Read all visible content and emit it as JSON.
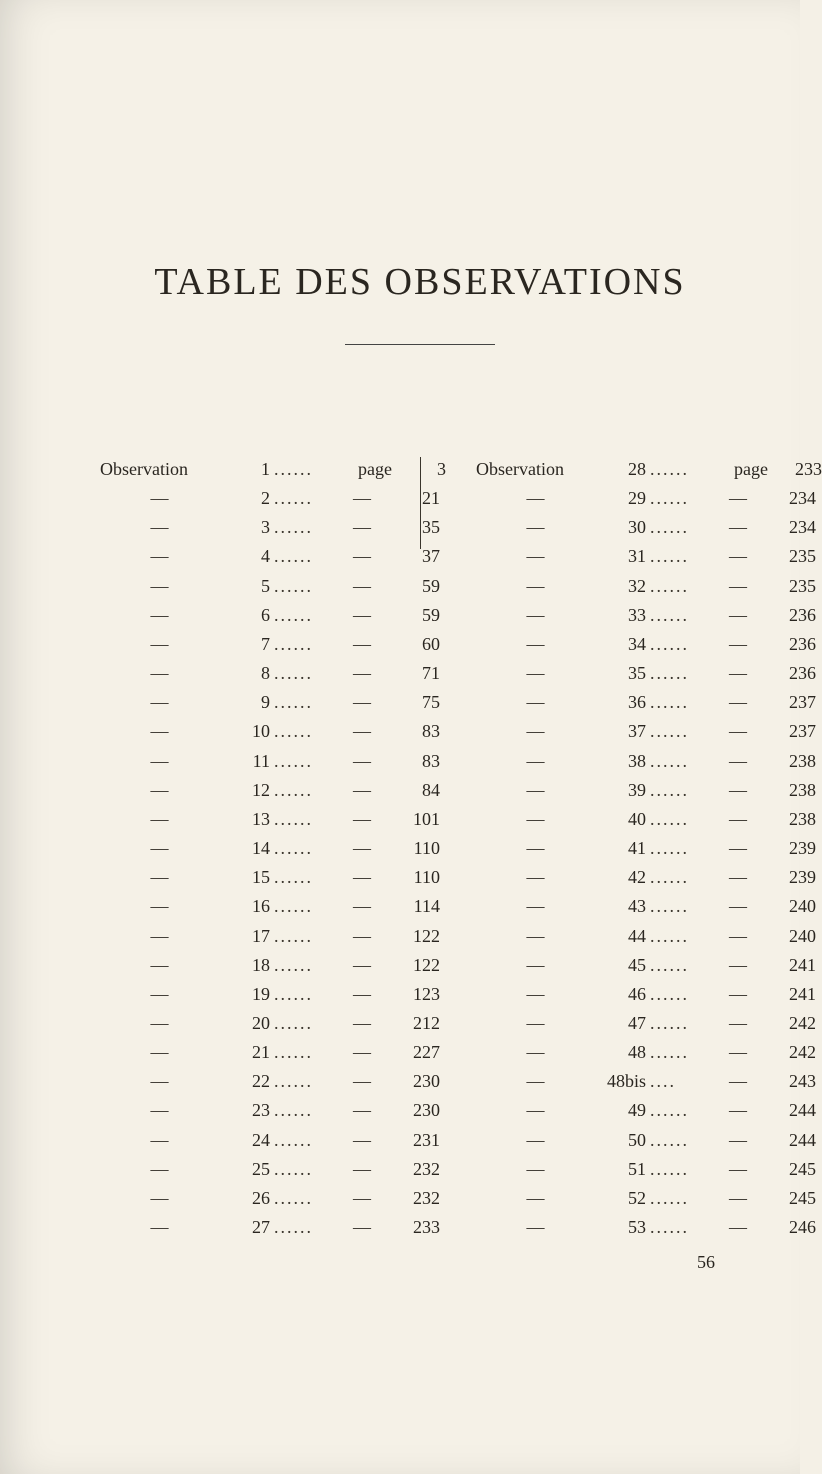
{
  "title": "TABLE DES OBSERVATIONS",
  "lead_word": "Observation",
  "page_word": "page",
  "dash": "—",
  "dots": "......",
  "footer": "56",
  "left": [
    {
      "n": "1",
      "p": "3"
    },
    {
      "n": "2",
      "p": "21"
    },
    {
      "n": "3",
      "p": "35"
    },
    {
      "n": "4",
      "p": "37"
    },
    {
      "n": "5",
      "p": "59"
    },
    {
      "n": "6",
      "p": "59"
    },
    {
      "n": "7",
      "p": "60"
    },
    {
      "n": "8",
      "p": "71"
    },
    {
      "n": "9",
      "p": "75"
    },
    {
      "n": "10",
      "p": "83"
    },
    {
      "n": "11",
      "p": "83"
    },
    {
      "n": "12",
      "p": "84"
    },
    {
      "n": "13",
      "p": "101"
    },
    {
      "n": "14",
      "p": "110"
    },
    {
      "n": "15",
      "p": "110"
    },
    {
      "n": "16",
      "p": "114"
    },
    {
      "n": "17",
      "p": "122"
    },
    {
      "n": "18",
      "p": "122"
    },
    {
      "n": "19",
      "p": "123"
    },
    {
      "n": "20",
      "p": "212"
    },
    {
      "n": "21",
      "p": "227"
    },
    {
      "n": "22",
      "p": "230"
    },
    {
      "n": "23",
      "p": "230"
    },
    {
      "n": "24",
      "p": "231"
    },
    {
      "n": "25",
      "p": "232"
    },
    {
      "n": "26",
      "p": "232"
    },
    {
      "n": "27",
      "p": "233"
    }
  ],
  "right": [
    {
      "n": "28",
      "p": "233"
    },
    {
      "n": "29",
      "p": "234"
    },
    {
      "n": "30",
      "p": "234"
    },
    {
      "n": "31",
      "p": "235"
    },
    {
      "n": "32",
      "p": "235"
    },
    {
      "n": "33",
      "p": "236"
    },
    {
      "n": "34",
      "p": "236"
    },
    {
      "n": "35",
      "p": "236"
    },
    {
      "n": "36",
      "p": "237"
    },
    {
      "n": "37",
      "p": "237"
    },
    {
      "n": "38",
      "p": "238"
    },
    {
      "n": "39",
      "p": "238"
    },
    {
      "n": "40",
      "p": "238"
    },
    {
      "n": "41",
      "p": "239"
    },
    {
      "n": "42",
      "p": "239"
    },
    {
      "n": "43",
      "p": "240"
    },
    {
      "n": "44",
      "p": "240"
    },
    {
      "n": "45",
      "p": "241"
    },
    {
      "n": "46",
      "p": "241"
    },
    {
      "n": "47",
      "p": "242"
    },
    {
      "n": "48",
      "p": "242"
    },
    {
      "n": "48bis",
      "p": "243",
      "dots": "...."
    },
    {
      "n": "49",
      "p": "244"
    },
    {
      "n": "50",
      "p": "244"
    },
    {
      "n": "51",
      "p": "245"
    },
    {
      "n": "52",
      "p": "245"
    },
    {
      "n": "53",
      "p": "246"
    }
  ]
}
